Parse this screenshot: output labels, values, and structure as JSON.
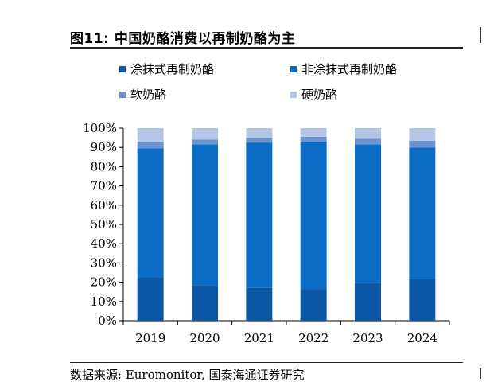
{
  "title": "图11:  中国奶酪消费以再制奶酪为主",
  "source": "数据来源:  Euromonitor, 国泰海通证券研究",
  "chart_data": {
    "type": "bar",
    "stacked": true,
    "percent": true,
    "categories": [
      "2019",
      "2020",
      "2021",
      "2022",
      "2023",
      "2024"
    ],
    "series": [
      {
        "name": "涂抹式再制奶酪",
        "color": "#0b57a6",
        "values": [
          22.5,
          18.5,
          17,
          16.5,
          19.5,
          21.5
        ]
      },
      {
        "name": "非涂抹式再制奶酪",
        "color": "#0a6cc4",
        "values": [
          67,
          73,
          75.5,
          76.5,
          72,
          68.5
        ]
      },
      {
        "name": "软奶酪",
        "color": "#6a93d0",
        "values": [
          3.5,
          2.5,
          2.5,
          2.5,
          3,
          3.5
        ]
      },
      {
        "name": "硬奶酪",
        "color": "#b3c6e6",
        "values": [
          7,
          6,
          5,
          4.5,
          5.5,
          6.5
        ]
      }
    ],
    "yticks": [
      "0%",
      "10%",
      "20%",
      "30%",
      "40%",
      "50%",
      "60%",
      "70%",
      "80%",
      "90%",
      "100%"
    ],
    "ylim": [
      0,
      100
    ],
    "legend_position": "top"
  }
}
